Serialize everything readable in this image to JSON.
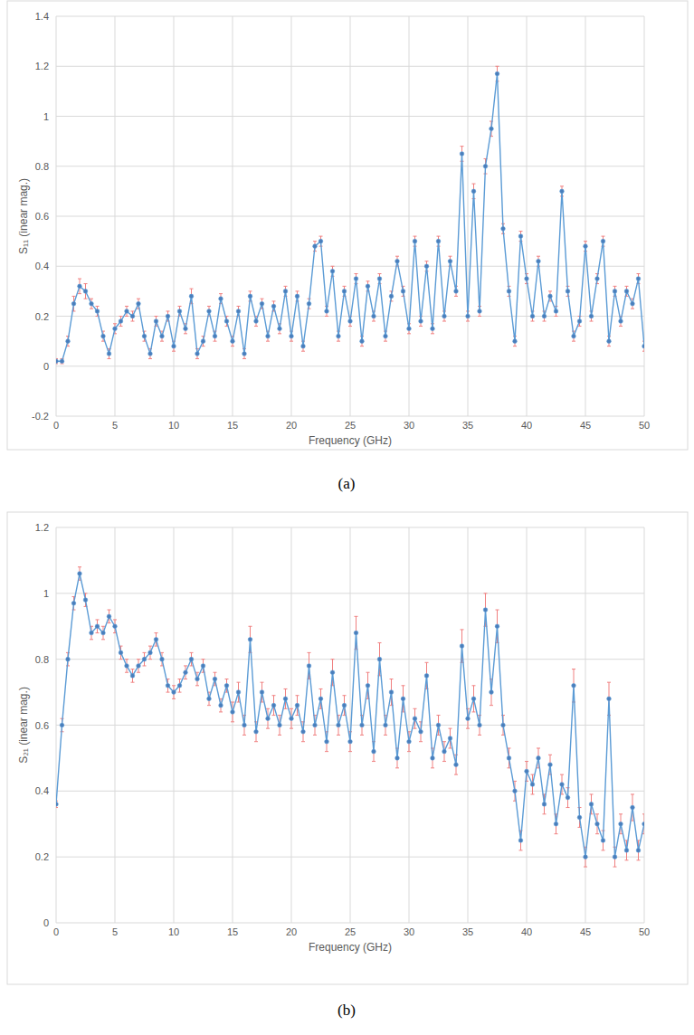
{
  "chart_data": [
    {
      "type": "line",
      "caption": "(a)",
      "xlabel": "Frequency (GHz)",
      "ylabel": "S₁₁ (inear mag.)",
      "x": [
        0,
        0.5,
        1,
        1.5,
        2,
        2.5,
        3,
        3.5,
        4,
        4.5,
        5,
        5.5,
        6,
        6.5,
        7,
        7.5,
        8,
        8.5,
        9,
        9.5,
        10,
        10.5,
        11,
        11.5,
        12,
        12.5,
        13,
        13.5,
        14,
        14.5,
        15,
        15.5,
        16,
        16.5,
        17,
        17.5,
        18,
        18.5,
        19,
        19.5,
        20,
        20.5,
        21,
        21.5,
        22,
        22.5,
        23,
        23.5,
        24,
        24.5,
        25,
        25.5,
        26,
        26.5,
        27,
        27.5,
        28,
        28.5,
        29,
        29.5,
        30,
        30.5,
        31,
        31.5,
        32,
        32.5,
        33,
        33.5,
        34,
        34.5,
        35,
        35.5,
        36,
        36.5,
        37,
        37.5,
        38,
        38.5,
        39,
        39.5,
        40,
        40.5,
        41,
        41.5,
        42,
        42.5,
        43,
        43.5,
        44,
        44.5,
        45,
        45.5,
        46,
        46.5,
        47,
        47.5,
        48,
        48.5,
        49,
        49.5,
        50
      ],
      "values": [
        0.02,
        0.02,
        0.1,
        0.25,
        0.32,
        0.3,
        0.25,
        0.22,
        0.12,
        0.05,
        0.15,
        0.18,
        0.22,
        0.2,
        0.25,
        0.12,
        0.05,
        0.18,
        0.12,
        0.2,
        0.08,
        0.22,
        0.15,
        0.28,
        0.05,
        0.1,
        0.22,
        0.12,
        0.27,
        0.18,
        0.1,
        0.22,
        0.05,
        0.28,
        0.18,
        0.25,
        0.12,
        0.24,
        0.15,
        0.3,
        0.12,
        0.28,
        0.08,
        0.25,
        0.48,
        0.5,
        0.22,
        0.38,
        0.12,
        0.3,
        0.18,
        0.35,
        0.1,
        0.32,
        0.2,
        0.35,
        0.12,
        0.28,
        0.42,
        0.3,
        0.15,
        0.5,
        0.18,
        0.4,
        0.15,
        0.5,
        0.2,
        0.42,
        0.3,
        0.85,
        0.2,
        0.7,
        0.22,
        0.8,
        0.95,
        1.17,
        0.55,
        0.3,
        0.1,
        0.52,
        0.35,
        0.2,
        0.42,
        0.2,
        0.28,
        0.22,
        0.7,
        0.3,
        0.12,
        0.18,
        0.48,
        0.2,
        0.35,
        0.5,
        0.1,
        0.3,
        0.18,
        0.3,
        0.25,
        0.35,
        0.08
      ],
      "errors": [
        0.01,
        0.01,
        0.02,
        0.03,
        0.03,
        0.03,
        0.02,
        0.02,
        0.02,
        0.02,
        0.02,
        0.02,
        0.02,
        0.02,
        0.02,
        0.02,
        0.02,
        0.02,
        0.02,
        0.02,
        0.02,
        0.02,
        0.02,
        0.03,
        0.02,
        0.02,
        0.02,
        0.02,
        0.02,
        0.02,
        0.02,
        0.02,
        0.02,
        0.02,
        0.02,
        0.02,
        0.02,
        0.02,
        0.02,
        0.02,
        0.02,
        0.02,
        0.02,
        0.02,
        0.02,
        0.02,
        0.02,
        0.02,
        0.02,
        0.02,
        0.02,
        0.02,
        0.02,
        0.02,
        0.02,
        0.02,
        0.02,
        0.02,
        0.02,
        0.02,
        0.02,
        0.02,
        0.02,
        0.02,
        0.02,
        0.02,
        0.02,
        0.02,
        0.02,
        0.03,
        0.02,
        0.03,
        0.02,
        0.03,
        0.03,
        0.03,
        0.02,
        0.02,
        0.02,
        0.02,
        0.02,
        0.02,
        0.02,
        0.02,
        0.02,
        0.02,
        0.02,
        0.02,
        0.02,
        0.02,
        0.02,
        0.02,
        0.02,
        0.02,
        0.02,
        0.02,
        0.02,
        0.02,
        0.02,
        0.02,
        0.02
      ],
      "color": "#5b9bd5",
      "marker": "circle",
      "xlim": [
        0,
        50
      ],
      "xticks": [
        0,
        5,
        10,
        15,
        20,
        25,
        30,
        35,
        40,
        45,
        50
      ],
      "ylim": [
        -0.2,
        1.4
      ],
      "yticks": [
        -0.2,
        0,
        0.2,
        0.4,
        0.6,
        0.8,
        1,
        1.2,
        1.4
      ],
      "grid": true
    },
    {
      "type": "line",
      "caption": "(b)",
      "xlabel": "Frequency (GHz)",
      "ylabel": "S₂₁ (inear mag.)",
      "x": [
        0,
        0.5,
        1,
        1.5,
        2,
        2.5,
        3,
        3.5,
        4,
        4.5,
        5,
        5.5,
        6,
        6.5,
        7,
        7.5,
        8,
        8.5,
        9,
        9.5,
        10,
        10.5,
        11,
        11.5,
        12,
        12.5,
        13,
        13.5,
        14,
        14.5,
        15,
        15.5,
        16,
        16.5,
        17,
        17.5,
        18,
        18.5,
        19,
        19.5,
        20,
        20.5,
        21,
        21.5,
        22,
        22.5,
        23,
        23.5,
        24,
        24.5,
        25,
        25.5,
        26,
        26.5,
        27,
        27.5,
        28,
        28.5,
        29,
        29.5,
        30,
        30.5,
        31,
        31.5,
        32,
        32.5,
        33,
        33.5,
        34,
        34.5,
        35,
        35.5,
        36,
        36.5,
        37,
        37.5,
        38,
        38.5,
        39,
        39.5,
        40,
        40.5,
        41,
        41.5,
        42,
        42.5,
        43,
        43.5,
        44,
        44.5,
        45,
        45.5,
        46,
        46.5,
        47,
        47.5,
        48,
        48.5,
        49,
        49.5,
        50
      ],
      "values": [
        0.36,
        0.6,
        0.8,
        0.97,
        1.06,
        0.98,
        0.88,
        0.9,
        0.88,
        0.93,
        0.9,
        0.82,
        0.78,
        0.75,
        0.78,
        0.8,
        0.82,
        0.86,
        0.8,
        0.72,
        0.7,
        0.72,
        0.76,
        0.8,
        0.74,
        0.78,
        0.68,
        0.74,
        0.66,
        0.72,
        0.64,
        0.7,
        0.6,
        0.86,
        0.58,
        0.7,
        0.62,
        0.66,
        0.6,
        0.68,
        0.62,
        0.66,
        0.58,
        0.78,
        0.6,
        0.68,
        0.55,
        0.76,
        0.6,
        0.66,
        0.55,
        0.88,
        0.6,
        0.72,
        0.52,
        0.8,
        0.6,
        0.7,
        0.5,
        0.68,
        0.55,
        0.62,
        0.58,
        0.75,
        0.5,
        0.6,
        0.52,
        0.56,
        0.48,
        0.84,
        0.62,
        0.68,
        0.6,
        0.95,
        0.7,
        0.9,
        0.6,
        0.5,
        0.4,
        0.25,
        0.46,
        0.42,
        0.5,
        0.36,
        0.48,
        0.3,
        0.42,
        0.38,
        0.72,
        0.32,
        0.2,
        0.36,
        0.3,
        0.25,
        0.68,
        0.2,
        0.3,
        0.22,
        0.35,
        0.22,
        0.3
      ],
      "errors": [
        0.01,
        0.02,
        0.02,
        0.02,
        0.02,
        0.02,
        0.02,
        0.02,
        0.02,
        0.02,
        0.02,
        0.02,
        0.02,
        0.02,
        0.02,
        0.02,
        0.02,
        0.02,
        0.02,
        0.02,
        0.02,
        0.02,
        0.02,
        0.02,
        0.02,
        0.02,
        0.02,
        0.02,
        0.02,
        0.02,
        0.03,
        0.03,
        0.03,
        0.04,
        0.03,
        0.03,
        0.03,
        0.03,
        0.03,
        0.03,
        0.03,
        0.03,
        0.03,
        0.04,
        0.03,
        0.03,
        0.03,
        0.04,
        0.03,
        0.03,
        0.03,
        0.05,
        0.03,
        0.04,
        0.03,
        0.05,
        0.03,
        0.04,
        0.03,
        0.04,
        0.03,
        0.03,
        0.03,
        0.04,
        0.03,
        0.03,
        0.03,
        0.03,
        0.03,
        0.05,
        0.03,
        0.04,
        0.03,
        0.05,
        0.04,
        0.05,
        0.03,
        0.03,
        0.03,
        0.03,
        0.03,
        0.03,
        0.03,
        0.03,
        0.03,
        0.03,
        0.03,
        0.03,
        0.05,
        0.03,
        0.03,
        0.03,
        0.03,
        0.03,
        0.05,
        0.03,
        0.03,
        0.03,
        0.04,
        0.03,
        0.03
      ],
      "color": "#5b9bd5",
      "marker": "circle",
      "xlim": [
        0,
        50
      ],
      "xticks": [
        0,
        5,
        10,
        15,
        20,
        25,
        30,
        35,
        40,
        45,
        50
      ],
      "ylim": [
        0,
        1.2
      ],
      "yticks": [
        0,
        0.2,
        0.4,
        0.6,
        0.8,
        1,
        1.2
      ],
      "grid": true
    }
  ]
}
